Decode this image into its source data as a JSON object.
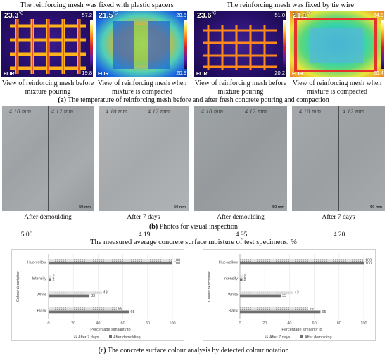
{
  "section_a": {
    "left_title": "The reinforcing mesh was fixed with plastic spacers",
    "right_title": "The reinforcing mesh was fixed by tie wire",
    "panels": [
      {
        "temp": "23.3",
        "unit": "°C",
        "max": "57.2",
        "min": "19.8",
        "flir": "FLIR",
        "caption": "View of reinforcing mesh before mixture pouring"
      },
      {
        "temp": "21.5",
        "unit": "°C",
        "max": "28.5",
        "min": "20.9",
        "flir": "FLIR",
        "caption": "View of reinforcing mesh when mixture is compacted"
      },
      {
        "temp": "23.6",
        "unit": "°C",
        "max": "51.0",
        "min": "20.2",
        "flir": "FLIR",
        "caption": "View of reinforcing mesh before mixture pouring"
      },
      {
        "temp": "21.1",
        "unit": "°C",
        "max": "24.5",
        "min": "20.4",
        "flir": "FLIR",
        "caption": "View of reinforcing mesh when mixture is compacted"
      }
    ],
    "caption_label": "(a)",
    "caption_text": " The temperature of reinforcing mesh before and after fresh concrete pouring and compaction"
  },
  "section_b": {
    "photos": [
      {
        "mark_left": "4 10 mm",
        "mark_right": "4 12 mm",
        "scale": "50 mm",
        "label": "After demoulding"
      },
      {
        "mark_left": "4 10 mm",
        "mark_right": "4 12 mm",
        "scale": "50 mm",
        "label": "After 7 days"
      },
      {
        "mark_left": "4 10 mm",
        "mark_right": "4 12 mm",
        "scale": "50 mm",
        "label": "After demoulding"
      },
      {
        "mark_left": "4 10 mm",
        "mark_right": "4 12 mm",
        "scale": "50 mm",
        "label": "After 7 days"
      }
    ],
    "caption_label": "(b)",
    "caption_text": " Photos for visual inspection"
  },
  "moisture": {
    "values": [
      "5.00",
      "4.19",
      "4.95",
      "4.20"
    ],
    "title": "The measured average concrete surface moisture of test specimens, %"
  },
  "section_c": {
    "caption_label": "(c)",
    "caption_text": " The concrete surface colour analysis by detected colour notation"
  },
  "chart_data": [
    {
      "type": "bar",
      "orientation": "horizontal",
      "categories": [
        "Hue-yellow",
        "Intensity",
        "White",
        "Black"
      ],
      "series": [
        {
          "name": "After 7 days",
          "values": [
            100,
            2,
            43,
            55
          ]
        },
        {
          "name": "After demolding",
          "values": [
            100,
            2,
            33,
            65
          ]
        }
      ],
      "xlabel": "Percentage similarity to",
      "ylabel": "Colour description",
      "xlim": [
        0,
        100
      ],
      "xticks": [
        0,
        20,
        40,
        60,
        80,
        100
      ],
      "legend": "bottom",
      "colors": {
        "After 7 days": "#c8c8c8",
        "After demolding": "#6e6e6e"
      }
    },
    {
      "type": "bar",
      "orientation": "horizontal",
      "categories": [
        "Hue-yellow",
        "Intensity",
        "White",
        "Black"
      ],
      "series": [
        {
          "name": "After 7 days",
          "values": [
            100,
            2,
            43,
            55
          ]
        },
        {
          "name": "After demolding",
          "values": [
            100,
            2,
            33,
            65
          ]
        }
      ],
      "xlabel": "Percentage similarity to",
      "ylabel": "Colour description",
      "xlim": [
        0,
        100
      ],
      "xticks": [
        0,
        20,
        40,
        60,
        80,
        100
      ],
      "legend": "bottom",
      "colors": {
        "After 7 days": "#c8c8c8",
        "After demolding": "#6e6e6e"
      }
    }
  ]
}
